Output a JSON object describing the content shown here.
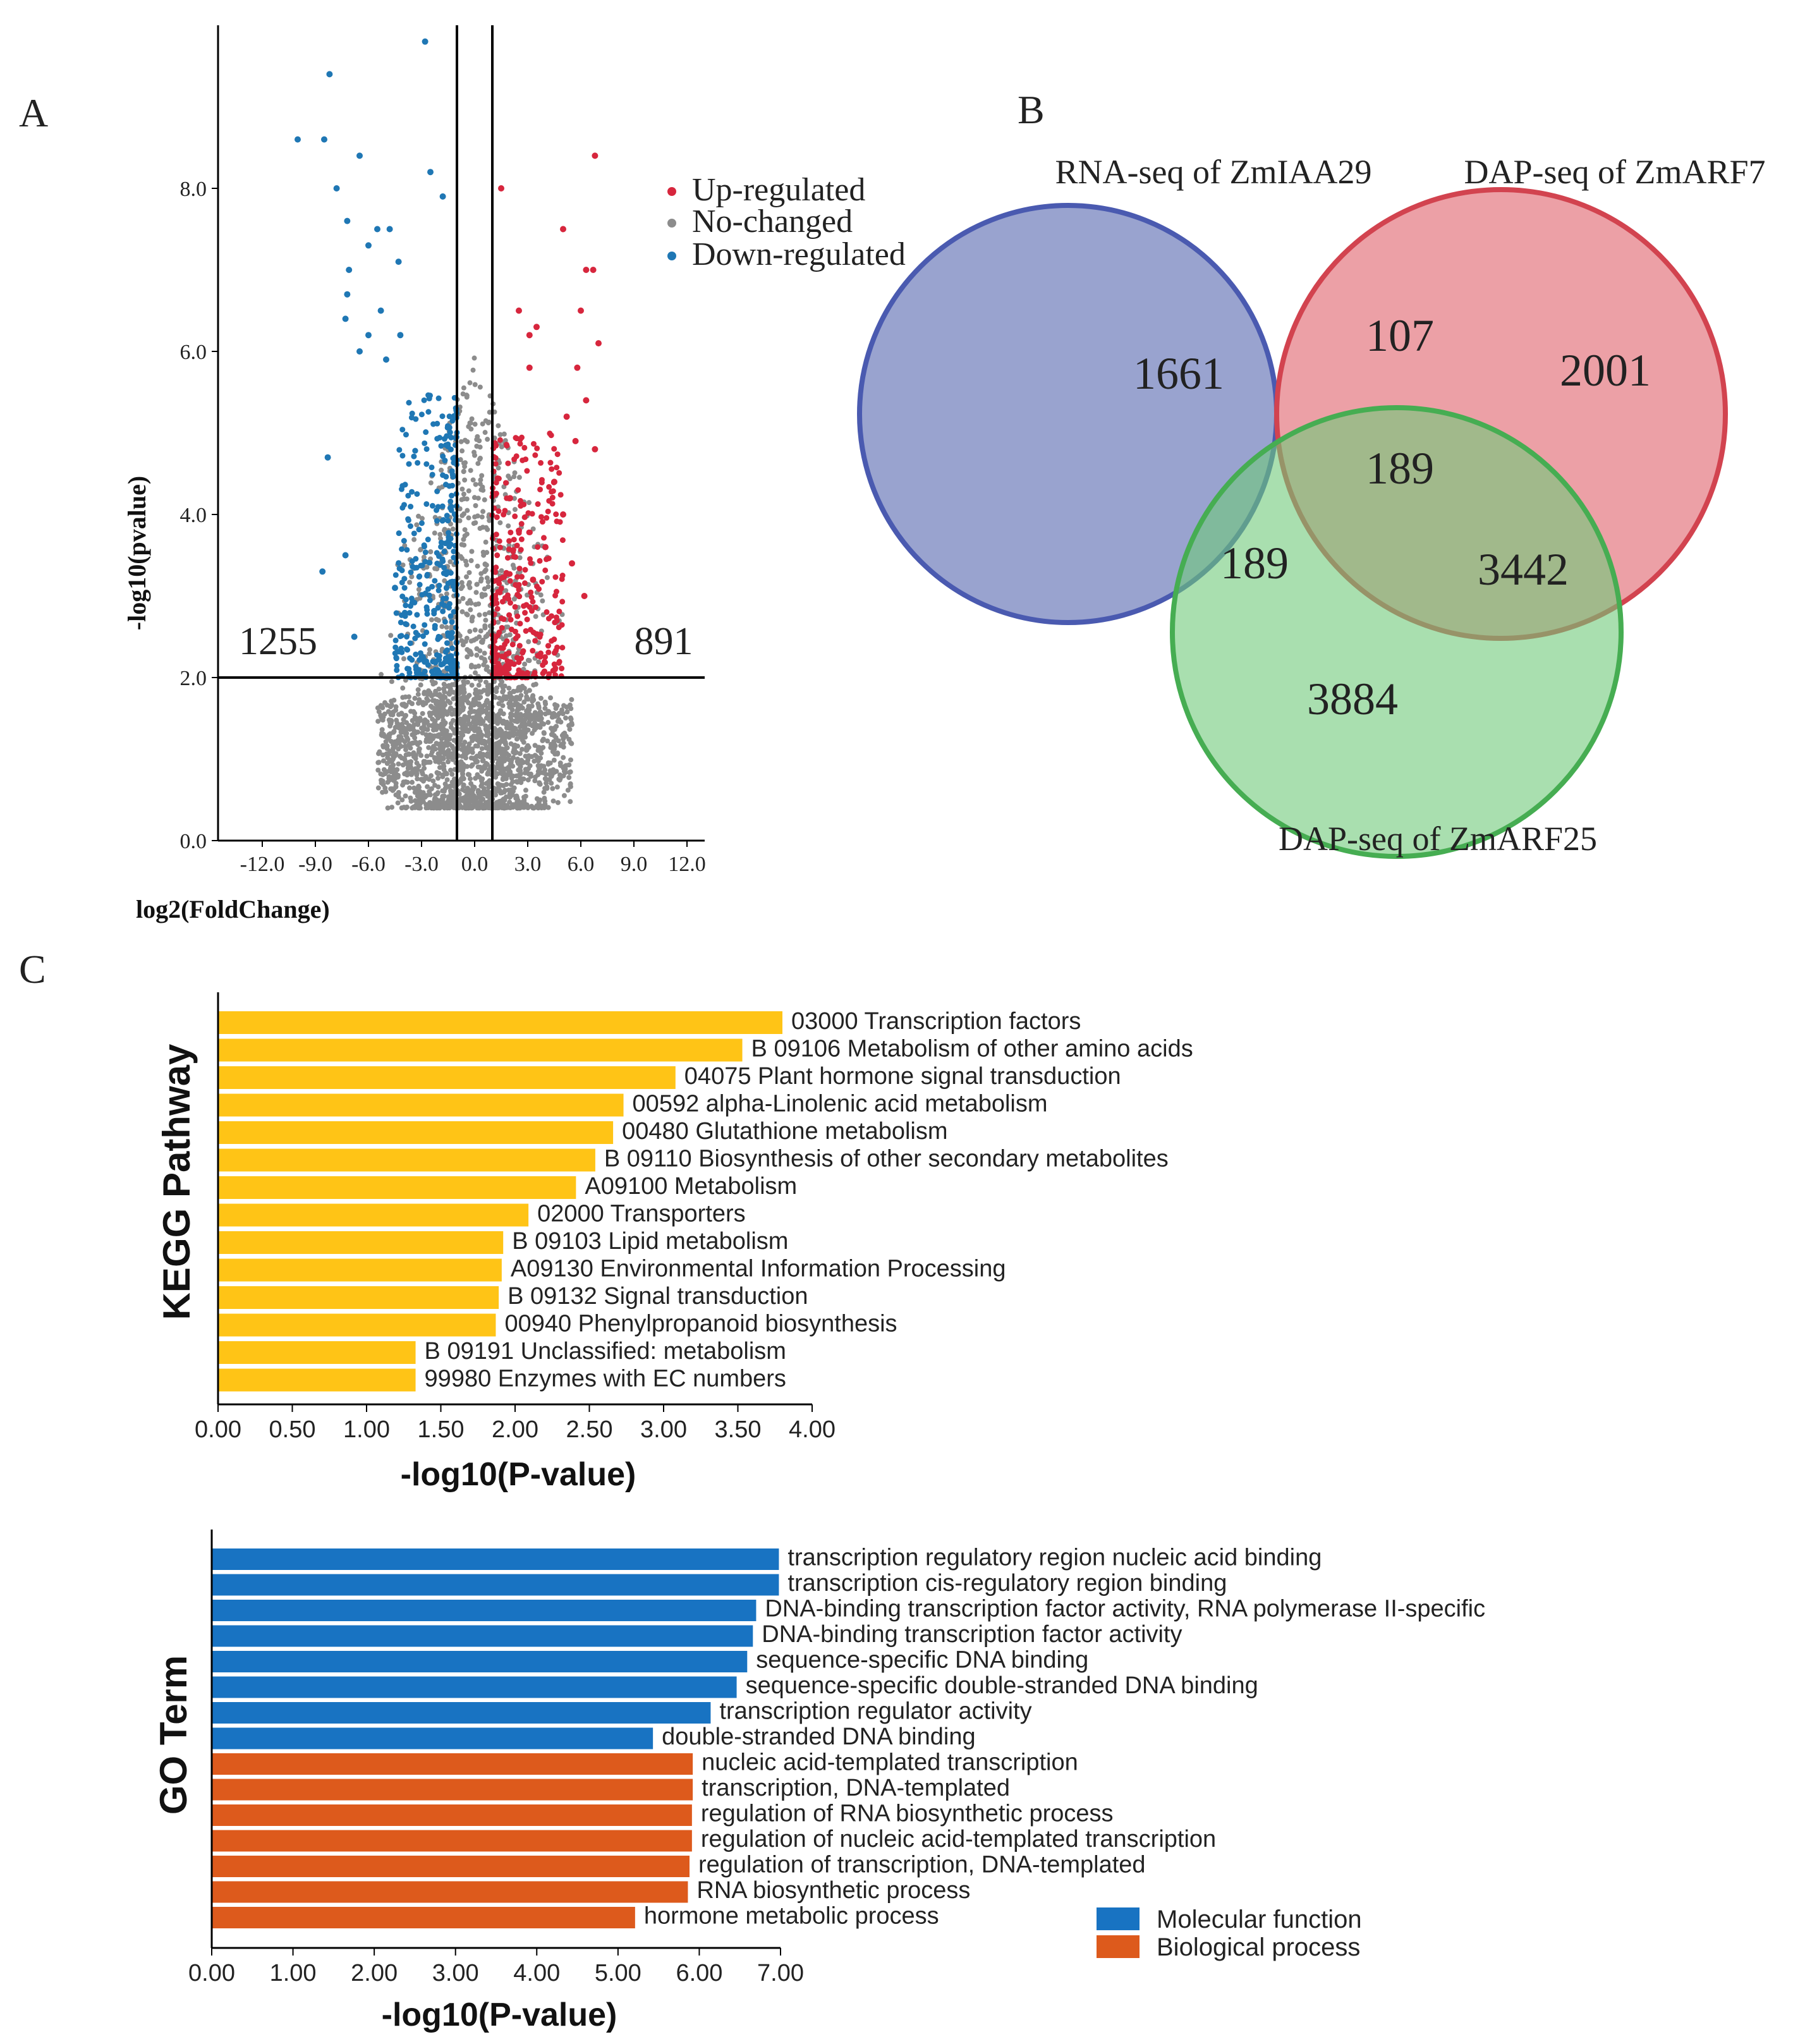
{
  "panel_labels": {
    "a": "A",
    "b": "B",
    "c": "C"
  },
  "chart_data": [
    {
      "id": "volcano",
      "type": "scatter",
      "title": "",
      "xlabel": "log2(FoldChange)",
      "ylabel": "-log10(pvalue)",
      "xlim": [
        -14.5,
        13
      ],
      "ylim": [
        0,
        10
      ],
      "x_ticks": [
        "-12.0",
        "-9.0",
        "-6.0",
        "-3.0",
        "0.0",
        "3.0",
        "6.0",
        "9.0",
        "12.0"
      ],
      "y_ticks": [
        "0.0",
        "2.0",
        "4.0",
        "6.0",
        "8.0"
      ],
      "thresholds": {
        "log2fc": [
          -1,
          1
        ],
        "neglog10p": 2
      },
      "counts": {
        "down": "1255",
        "up": "891"
      },
      "legend": [
        "Up-regulated",
        "No-changed",
        "Down-regulated"
      ],
      "legend_position": "top-right",
      "colors": {
        "up": "#d7263d",
        "nochange": "#8c8c8c",
        "down": "#1f77b4"
      },
      "points_up": [
        [
          1.5,
          8.0
        ],
        [
          2.5,
          6.5
        ],
        [
          3.1,
          6.2
        ],
        [
          3.5,
          6.3
        ],
        [
          3.1,
          5.8
        ],
        [
          5.0,
          7.5
        ],
        [
          6.8,
          8.4
        ],
        [
          6.3,
          7.0
        ],
        [
          6.7,
          7.0
        ],
        [
          6.0,
          6.5
        ],
        [
          7.0,
          6.1
        ],
        [
          5.8,
          5.8
        ],
        [
          5.2,
          5.2
        ],
        [
          6.3,
          5.4
        ],
        [
          5.7,
          4.9
        ],
        [
          6.8,
          4.8
        ],
        [
          4.5,
          4.4
        ],
        [
          5.0,
          4.0
        ],
        [
          4.0,
          3.6
        ],
        [
          2.0,
          4.2
        ],
        [
          3.3,
          3.2
        ],
        [
          5.5,
          3.4
        ],
        [
          6.2,
          3.0
        ],
        [
          2.5,
          3.8
        ]
      ],
      "points_down": [
        [
          -2.8,
          9.8
        ],
        [
          -8.2,
          9.4
        ],
        [
          -10.0,
          8.6
        ],
        [
          -8.5,
          8.6
        ],
        [
          -6.5,
          8.4
        ],
        [
          -2.5,
          8.2
        ],
        [
          -7.8,
          8.0
        ],
        [
          -1.8,
          7.9
        ],
        [
          -7.2,
          7.6
        ],
        [
          -5.5,
          7.5
        ],
        [
          -4.8,
          7.5
        ],
        [
          -6.0,
          7.3
        ],
        [
          -4.3,
          7.1
        ],
        [
          -7.1,
          7.0
        ],
        [
          -7.2,
          6.7
        ],
        [
          -5.3,
          6.5
        ],
        [
          -7.3,
          6.4
        ],
        [
          -6.0,
          6.2
        ],
        [
          -4.2,
          6.2
        ],
        [
          -6.5,
          6.0
        ],
        [
          -5.0,
          5.9
        ],
        [
          -8.3,
          4.7
        ],
        [
          -8.6,
          3.3
        ],
        [
          -4.5,
          3.1
        ],
        [
          -7.3,
          3.5
        ],
        [
          -6.8,
          2.5
        ]
      ],
      "clusters": {
        "nochange": [
          {
            "x0": -2.0,
            "x1": 2.0,
            "y0": 0.4,
            "y1": 6.0
          }
        ],
        "up": [
          {
            "x0": 1.0,
            "x1": 5.0,
            "y0": 2.0,
            "y1": 5.0
          }
        ],
        "down": [
          {
            "x0": -4.5,
            "x1": -1.0,
            "y0": 2.0,
            "y1": 5.5
          }
        ]
      }
    },
    {
      "id": "venn",
      "type": "venn",
      "sets": [
        {
          "name": "RNA-seq of ZmIAA29",
          "color": "#6272b5"
        },
        {
          "name": "DAP-seq of ZmARF7",
          "color": "#e0606b"
        },
        {
          "name": "DAP-seq of ZmARF25",
          "color": "#6fc97a"
        }
      ],
      "regions": {
        "only_rna": "1661",
        "only_arf7": "2001",
        "only_arf25": "3884",
        "rna_arf7": "107",
        "rna_arf25": "189",
        "arf7_arf25": "3442",
        "all_three": "189"
      }
    },
    {
      "id": "kegg",
      "type": "bar",
      "orientation": "horizontal",
      "ylabel": "KEGG Pathway",
      "xlabel": "-log10(P-value)",
      "xlim": [
        0,
        4
      ],
      "x_ticks": [
        "0.00",
        "0.50",
        "1.00",
        "1.50",
        "2.00",
        "2.50",
        "3.00",
        "3.50",
        "4.00"
      ],
      "color": "#ffc416",
      "categories": [
        "03000 Transcription factors",
        "B  09106 Metabolism of other amino acids",
        "04075 Plant hormone signal transduction",
        "00592 alpha-Linolenic acid metabolism",
        "00480 Glutathione metabolism",
        "B  09110 Biosynthesis of other secondary metabolites",
        "A09100 Metabolism",
        "02000 Transporters",
        "B  09103 Lipid metabolism",
        "A09130 Environmental Information Processing",
        "B  09132 Signal transduction",
        "00940 Phenylpropanoid biosynthesis",
        "B  09191 Unclassified: metabolism",
        "99980 Enzymes with EC numbers"
      ],
      "values": [
        3.8,
        3.53,
        3.08,
        2.73,
        2.66,
        2.54,
        2.41,
        2.09,
        1.92,
        1.91,
        1.89,
        1.87,
        1.33,
        1.33
      ]
    },
    {
      "id": "go",
      "type": "bar",
      "orientation": "horizontal",
      "ylabel": "GO Term",
      "xlabel": "-log10(P-value)",
      "xlim": [
        0,
        7
      ],
      "x_ticks": [
        "0.00",
        "1.00",
        "2.00",
        "3.00",
        "4.00",
        "5.00",
        "6.00",
        "7.00"
      ],
      "legend": [
        {
          "name": "Molecular function",
          "color": "#1873c2"
        },
        {
          "name": "Biological process",
          "color": "#dd5a1c"
        }
      ],
      "legend_position": "bottom-right",
      "categories": [
        "transcription regulatory region nucleic acid binding",
        "transcription cis-regulatory region binding",
        "DNA-binding transcription factor activity, RNA polymerase II-specific",
        "DNA-binding transcription factor activity",
        "sequence-specific DNA binding",
        "sequence-specific double-stranded DNA binding",
        "transcription regulator activity",
        "double-stranded DNA binding",
        "nucleic acid-templated transcription",
        "transcription, DNA-templated",
        "regulation of RNA biosynthetic process",
        "regulation of nucleic acid-templated transcription",
        "regulation of transcription, DNA-templated",
        "RNA biosynthetic process",
        "hormone metabolic process"
      ],
      "values": [
        6.98,
        6.98,
        6.7,
        6.66,
        6.59,
        6.46,
        6.14,
        5.43,
        5.92,
        5.92,
        5.91,
        5.91,
        5.88,
        5.86,
        5.21
      ],
      "groups": [
        "Molecular function",
        "Molecular function",
        "Molecular function",
        "Molecular function",
        "Molecular function",
        "Molecular function",
        "Molecular function",
        "Molecular function",
        "Biological process",
        "Biological process",
        "Biological process",
        "Biological process",
        "Biological process",
        "Biological process",
        "Biological process"
      ]
    }
  ]
}
